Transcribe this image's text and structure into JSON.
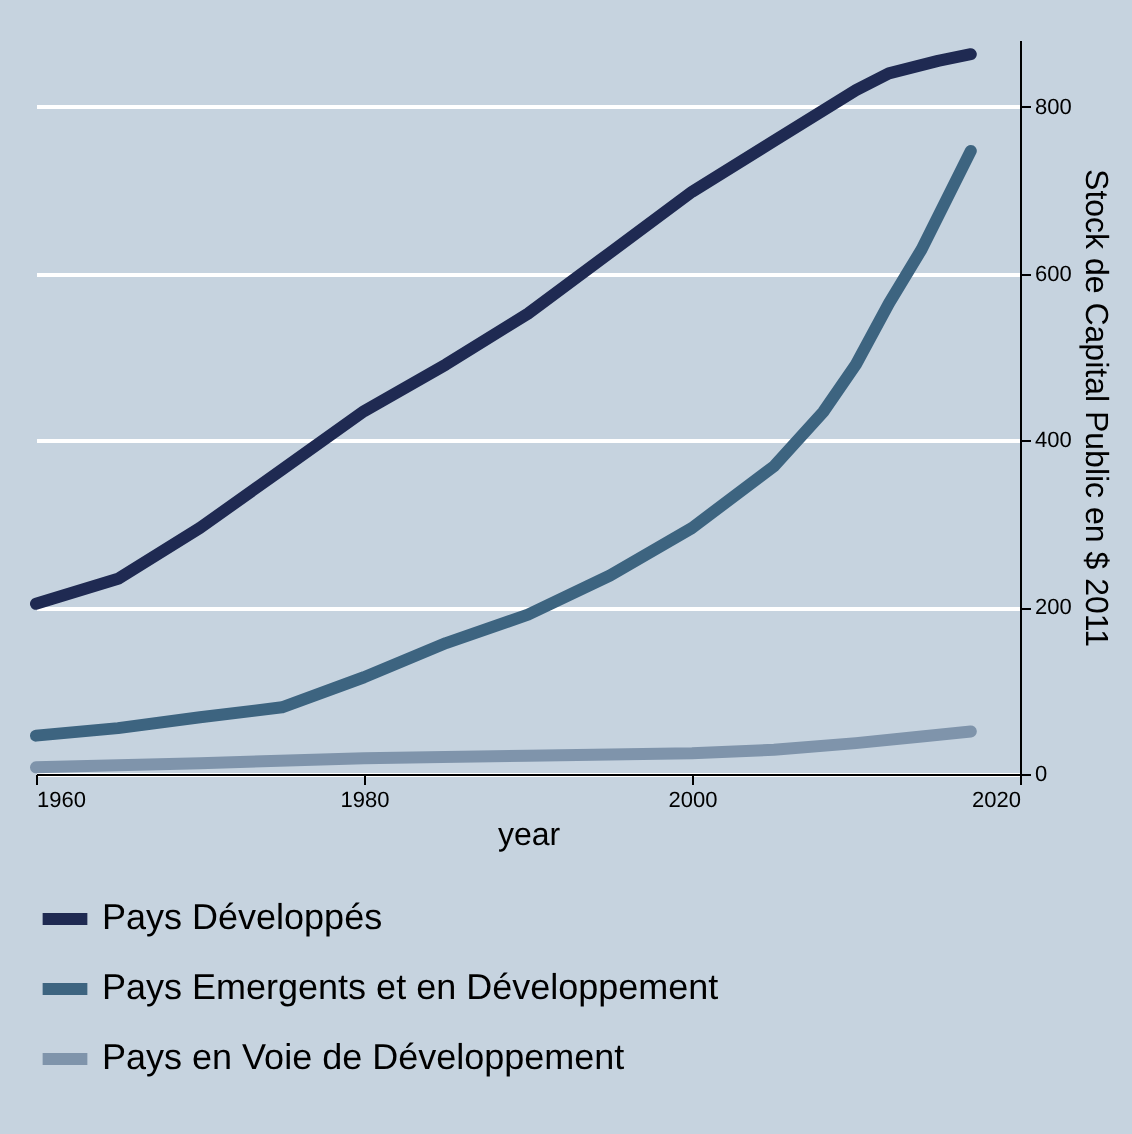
{
  "chart_data": {
    "type": "line",
    "xlabel": "year",
    "ylabel": "Stock de Capital Public en $ 2011",
    "xlim": [
      1960,
      2020
    ],
    "xticks": [
      1960,
      1980,
      2000,
      2020
    ],
    "ylim": [
      0,
      880
    ],
    "yticks": [
      0,
      200,
      400,
      600,
      800
    ],
    "grid": "y",
    "legend": "bottom",
    "line_style": "solid",
    "marker": "none",
    "series": [
      {
        "name": "Pays Développés",
        "color": "#1f2a52",
        "x": [
          1960,
          1965,
          1970,
          1975,
          1980,
          1985,
          1990,
          1995,
          2000,
          2005,
          2010,
          2012,
          2015,
          2017
        ],
        "values": [
          204,
          234,
          295,
          365,
          435,
          491,
          552,
          625,
          698,
          759,
          820,
          840,
          855,
          863
        ]
      },
      {
        "name": "Pays Emergents et en Développement",
        "color": "#3d6480",
        "x": [
          1960,
          1965,
          1970,
          1975,
          1980,
          1985,
          1990,
          1995,
          2000,
          2005,
          2008,
          2010,
          2012,
          2014,
          2017
        ],
        "values": [
          46,
          55,
          68,
          80,
          116,
          157,
          191,
          238,
          295,
          369,
          434,
          491,
          564,
          629,
          747
        ]
      },
      {
        "name": "Pays en Voie de Développement",
        "color": "#7f94ab",
        "x": [
          1960,
          1970,
          1980,
          1990,
          2000,
          2005,
          2010,
          2014,
          2017
        ],
        "values": [
          8,
          13,
          19,
          22,
          25,
          29,
          37,
          45,
          51
        ]
      }
    ]
  }
}
